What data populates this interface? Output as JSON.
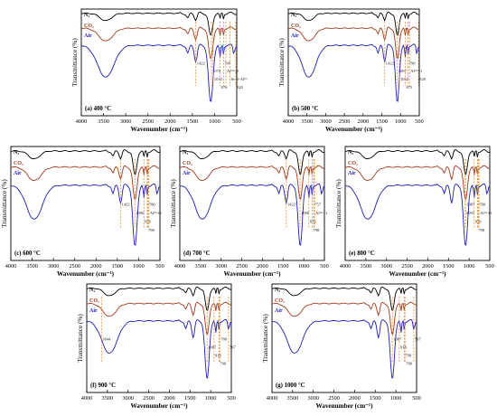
{
  "figure": {
    "colors": {
      "n2": "#000000",
      "co2": "#a0391c",
      "air": "#1e1eb4",
      "guide": "#e0821e",
      "n2_label": "#000000",
      "co2_label": "#a0391c",
      "air_label": "#1e1eb4"
    },
    "ylabel": "Transmittance (%)",
    "xlabel": "Wavenumber (cm⁻¹)",
    "legend": {
      "n2": "N₂",
      "co2": "CO₂",
      "air": "Air"
    }
  },
  "chart_data": [
    {
      "type": "line",
      "panel": "(a) 400 °C",
      "xlim": [
        4000,
        500
      ],
      "xticks": [
        "4000",
        "3500",
        "3000",
        "2500",
        "2000",
        "1500",
        "1000",
        "500"
      ],
      "xlabel": "Wavenumber (cm⁻¹)",
      "ylabel": "Transmittance (%)",
      "series_names": [
        "N₂",
        "CO₂",
        "Air"
      ],
      "annotations": [
        {
          "x": 1422,
          "text": "1422"
        },
        {
          "x": 1070,
          "text": "1070"
        },
        {
          "x": 1033,
          "text": "1033"
        },
        {
          "x": 876,
          "text": "876"
        },
        {
          "x": 798,
          "text": "798"
        },
        {
          "x": 745,
          "text": "Alᴴᵛ-O"
        },
        {
          "x": 650,
          "text": "Si-O-Alᴴᵛ"
        },
        {
          "x": 520,
          "text": "520"
        }
      ]
    },
    {
      "type": "line",
      "panel": "(b) 500 °C",
      "xlim": [
        4000,
        500
      ],
      "xticks": [
        "4000",
        "3500",
        "3000",
        "2500",
        "2000",
        "1500",
        "1000",
        "500"
      ],
      "xlabel": "Wavenumber (cm⁻¹)",
      "ylabel": "Transmittance (%)",
      "series_names": [
        "N₂",
        "CO₂",
        "Air"
      ],
      "annotations": [
        {
          "x": 1422,
          "text": "1422"
        },
        {
          "x": 1087,
          "text": "1087"
        },
        {
          "x": 1032,
          "text": "1032"
        },
        {
          "x": 875,
          "text": "875"
        },
        {
          "x": 798,
          "text": "798"
        },
        {
          "x": 760,
          "text": "Alᴴᵛ-O"
        },
        {
          "x": 520,
          "text": "520"
        }
      ]
    },
    {
      "type": "line",
      "panel": "(c) 600 °C",
      "xlim": [
        4000,
        500
      ],
      "xticks": [
        "4000",
        "3500",
        "3000",
        "2500",
        "2000",
        "1500",
        "1000",
        "500"
      ],
      "xlabel": "Wavenumber (cm⁻¹)",
      "ylabel": "Transmittance (%)",
      "series_names": [
        "N₂",
        "CO₂",
        "Air"
      ],
      "annotations": [
        {
          "x": 1422,
          "text": "1422"
        },
        {
          "x": 1090,
          "text": "1090"
        },
        {
          "x": 876,
          "text": "876"
        },
        {
          "x": 798,
          "text": "798"
        },
        {
          "x": 780,
          "text": "780"
        },
        {
          "x": 760,
          "text": "Alᴴᵛ-O"
        }
      ]
    },
    {
      "type": "line",
      "panel": "(d) 700 °C",
      "xlim": [
        4000,
        500
      ],
      "xticks": [
        "4000",
        "3500",
        "3000",
        "2500",
        "2000",
        "1500",
        "1000",
        "500"
      ],
      "xlabel": "Wavenumber (cm⁻¹)",
      "ylabel": "Transmittance (%)",
      "series_names": [
        "N₂",
        "CO₂",
        "Air"
      ],
      "annotations": [
        {
          "x": 1422,
          "text": "1422"
        },
        {
          "x": 1090,
          "text": "1090"
        },
        {
          "x": 876,
          "text": "876"
        },
        {
          "x": 798,
          "text": "798"
        },
        {
          "x": 757,
          "text": "757"
        },
        {
          "x": 740,
          "text": "Alᴴᵛ-O"
        }
      ]
    },
    {
      "type": "line",
      "panel": "(e) 800 °C",
      "xlim": [
        4000,
        500
      ],
      "xticks": [
        "4000",
        "3500",
        "3000",
        "2500",
        "2000",
        "1500",
        "1000",
        "500"
      ],
      "xlabel": "Wavenumber (cm⁻¹)",
      "ylabel": "Transmittance (%)",
      "series_names": [
        "N₂",
        "CO₂",
        "Air"
      ],
      "annotations": [
        {
          "x": 1087,
          "text": "1087"
        },
        {
          "x": 1095,
          "text": "1095"
        },
        {
          "x": 876,
          "text": "876"
        },
        {
          "x": 798,
          "text": "798"
        },
        {
          "x": 780,
          "text": "780"
        },
        {
          "x": 760,
          "text": "Alᴴᵛ-O"
        }
      ]
    },
    {
      "type": "line",
      "panel": "(f) 900 °C",
      "xlim": [
        4000,
        500
      ],
      "xticks": [
        "4000",
        "3500",
        "3000",
        "2500",
        "2000",
        "1500",
        "1000",
        "500"
      ],
      "xlabel": "Wavenumber (cm⁻¹)",
      "ylabel": "Transmittance (%)",
      "series_names": [
        "N₂",
        "CO₂",
        "Air"
      ],
      "annotations": [
        {
          "x": 3644,
          "text": "3644"
        },
        {
          "x": 1087,
          "text": "1087"
        },
        {
          "x": 918,
          "text": "918"
        },
        {
          "x": 798,
          "text": "798"
        },
        {
          "x": 780,
          "text": "780"
        },
        {
          "x": 567,
          "text": "567"
        }
      ]
    },
    {
      "type": "line",
      "panel": "(g) 1000 °C",
      "xlim": [
        4000,
        500
      ],
      "xticks": [
        "4000",
        "3500",
        "3000",
        "2500",
        "2000",
        "1500",
        "1000",
        "500"
      ],
      "xlabel": "Wavenumber (cm⁻¹)",
      "ylabel": "Transmittance (%)",
      "series_names": [
        "N₂",
        "CO₂",
        "Air"
      ],
      "annotations": [
        {
          "x": 1087,
          "text": "1087"
        },
        {
          "x": 918,
          "text": "918"
        },
        {
          "x": 798,
          "text": "798"
        },
        {
          "x": 780,
          "text": "780"
        },
        {
          "x": 567,
          "text": "567"
        }
      ]
    }
  ]
}
